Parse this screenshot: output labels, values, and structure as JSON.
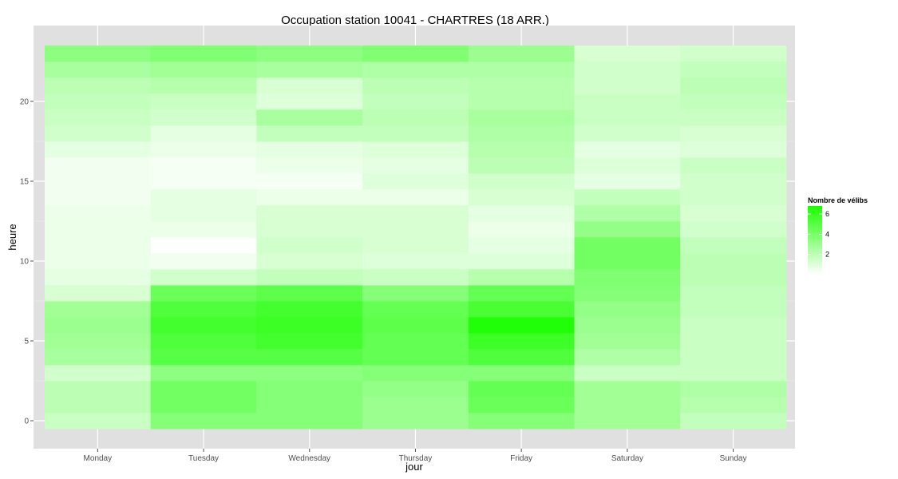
{
  "chart_data": {
    "type": "heatmap",
    "title": "Occupation station 10041 - CHARTRES (18 ARR.)",
    "xlabel": "jour",
    "ylabel": "heure",
    "categories": [
      "Monday",
      "Tuesday",
      "Wednesday",
      "Thursday",
      "Friday",
      "Saturday",
      "Sunday"
    ],
    "y_ticks": [
      0,
      5,
      10,
      15,
      20
    ],
    "ylim": [
      -0.5,
      23.5
    ],
    "legend": {
      "title": "Nombre de vélibs",
      "ticks": [
        2,
        4,
        6
      ],
      "range": [
        0,
        6.8
      ],
      "low_color": "#ffffff",
      "high_color": "#1aff00",
      "position": "right"
    },
    "panel_color": "#e0e0e0",
    "grid": true,
    "values": [
      [
        1.6,
        3.6,
        3.6,
        3.0,
        3.6,
        2.8,
        1.8
      ],
      [
        2.0,
        4.2,
        3.6,
        3.0,
        4.4,
        2.8,
        2.2
      ],
      [
        2.0,
        4.2,
        3.6,
        3.2,
        4.6,
        2.8,
        2.4
      ],
      [
        1.4,
        3.4,
        3.4,
        3.6,
        3.6,
        1.6,
        1.6
      ],
      [
        2.6,
        5.0,
        5.0,
        4.6,
        5.2,
        2.4,
        1.6
      ],
      [
        2.8,
        5.2,
        5.6,
        4.6,
        5.8,
        2.8,
        1.6
      ],
      [
        3.0,
        5.6,
        5.8,
        4.8,
        6.6,
        3.0,
        1.6
      ],
      [
        2.8,
        5.2,
        5.6,
        4.6,
        5.4,
        3.2,
        1.8
      ],
      [
        1.2,
        4.4,
        4.8,
        3.6,
        4.6,
        3.6,
        1.8
      ],
      [
        0.8,
        1.4,
        1.8,
        1.6,
        2.2,
        3.8,
        2.0
      ],
      [
        0.6,
        0.4,
        1.2,
        1.0,
        1.0,
        4.2,
        2.0
      ],
      [
        0.6,
        0.1,
        1.4,
        1.2,
        0.8,
        4.2,
        1.8
      ],
      [
        0.6,
        0.6,
        1.2,
        1.2,
        0.6,
        3.2,
        1.4
      ],
      [
        0.6,
        0.8,
        1.2,
        1.2,
        0.8,
        2.4,
        1.2
      ],
      [
        0.4,
        0.8,
        0.6,
        0.6,
        1.2,
        1.8,
        1.4
      ],
      [
        0.4,
        0.3,
        0.3,
        1.0,
        1.4,
        0.8,
        1.4
      ],
      [
        0.4,
        0.3,
        0.6,
        0.8,
        2.0,
        1.0,
        1.6
      ],
      [
        0.8,
        0.6,
        0.8,
        1.0,
        2.2,
        0.8,
        1.0
      ],
      [
        1.4,
        0.8,
        1.8,
        1.8,
        2.4,
        1.4,
        1.2
      ],
      [
        1.6,
        1.4,
        2.6,
        2.0,
        2.6,
        1.6,
        1.6
      ],
      [
        1.8,
        1.6,
        1.0,
        1.8,
        2.2,
        1.6,
        1.8
      ],
      [
        2.0,
        2.2,
        1.2,
        2.0,
        2.2,
        1.4,
        2.0
      ],
      [
        2.6,
        2.8,
        2.6,
        2.4,
        2.4,
        1.4,
        1.8
      ],
      [
        3.4,
        3.8,
        3.4,
        3.8,
        3.0,
        1.2,
        1.4
      ]
    ]
  }
}
